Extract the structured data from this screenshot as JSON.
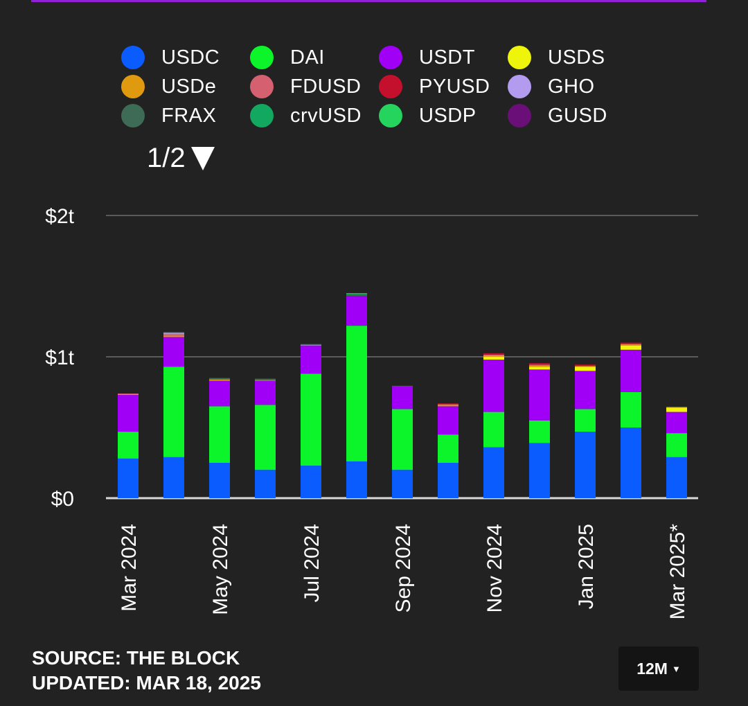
{
  "legend": {
    "items": [
      {
        "label": "USDC",
        "color": "#0a5cff"
      },
      {
        "label": "DAI",
        "color": "#0cf52a"
      },
      {
        "label": "USDT",
        "color": "#a000f5"
      },
      {
        "label": "USDS",
        "color": "#eef50a"
      },
      {
        "label": "USDe",
        "color": "#e09a10"
      },
      {
        "label": "FDUSD",
        "color": "#d56070"
      },
      {
        "label": "PYUSD",
        "color": "#c4102c"
      },
      {
        "label": "GHO",
        "color": "#b39cf0"
      },
      {
        "label": "FRAX",
        "color": "#3e6b56"
      },
      {
        "label": "crvUSD",
        "color": "#12a860"
      },
      {
        "label": "USDP",
        "color": "#25d45c"
      },
      {
        "label": "GUSD",
        "color": "#6a0f78"
      }
    ],
    "page_indicator": "1/2"
  },
  "footer": {
    "source": "SOURCE: THE BLOCK",
    "updated": "UPDATED: MAR 18, 2025"
  },
  "range_button": {
    "label": "12M"
  },
  "chart_data": {
    "type": "bar",
    "stacked": true,
    "ylim": [
      0,
      2
    ],
    "y_unit": "$ trillions",
    "y_ticks": [
      {
        "value": 0,
        "label": "$0"
      },
      {
        "value": 1,
        "label": "$1t"
      },
      {
        "value": 2,
        "label": "$2t"
      }
    ],
    "grid": true,
    "legend_position": "top",
    "categories": [
      "Mar 2024",
      "Apr 2024",
      "May 2024",
      "Jun 2024",
      "Jul 2024",
      "Aug 2024",
      "Sep 2024",
      "Oct 2024",
      "Nov 2024",
      "Dec 2024",
      "Jan 2025",
      "Feb 2025",
      "Mar 2025*"
    ],
    "x_tick_labels": [
      "Mar 2024",
      "",
      "May 2024",
      "",
      "Jul 2024",
      "",
      "Sep 2024",
      "",
      "Nov 2024",
      "",
      "Jan 2025",
      "",
      "Mar 2025*"
    ],
    "series": [
      {
        "name": "USDC",
        "color": "#0a5cff",
        "values": [
          0.28,
          0.29,
          0.25,
          0.2,
          0.23,
          0.26,
          0.2,
          0.25,
          0.36,
          0.39,
          0.47,
          0.5,
          0.29
        ]
      },
      {
        "name": "DAI",
        "color": "#0cf52a",
        "values": [
          0.19,
          0.64,
          0.4,
          0.46,
          0.65,
          0.96,
          0.43,
          0.2,
          0.25,
          0.16,
          0.16,
          0.25,
          0.17
        ]
      },
      {
        "name": "USDT",
        "color": "#a000f5",
        "values": [
          0.26,
          0.21,
          0.18,
          0.17,
          0.2,
          0.21,
          0.16,
          0.2,
          0.37,
          0.36,
          0.27,
          0.3,
          0.15
        ]
      },
      {
        "name": "USDS",
        "color": "#eef50a",
        "values": [
          0,
          0,
          0,
          0,
          0,
          0,
          0,
          0,
          0.02,
          0.02,
          0.03,
          0.03,
          0.03
        ]
      },
      {
        "name": "USDe",
        "color": "#e09a10",
        "values": [
          0.005,
          0.01,
          0.01,
          0.005,
          0,
          0,
          0,
          0.01,
          0.01,
          0.01,
          0.005,
          0.01,
          0.005
        ]
      },
      {
        "name": "FDUSD",
        "color": "#d56070",
        "values": [
          0.005,
          0.01,
          0,
          0,
          0,
          0,
          0,
          0.005,
          0.005,
          0.005,
          0,
          0,
          0
        ]
      },
      {
        "name": "PYUSD",
        "color": "#c4102c",
        "values": [
          0,
          0,
          0,
          0,
          0,
          0,
          0,
          0.005,
          0.01,
          0.01,
          0.01,
          0.01,
          0
        ]
      },
      {
        "name": "GHO",
        "color": "#b39cf0",
        "values": [
          0,
          0.01,
          0,
          0,
          0.005,
          0,
          0,
          0,
          0,
          0,
          0,
          0,
          0
        ]
      },
      {
        "name": "FRAX",
        "color": "#3e6b56",
        "values": [
          0,
          0.005,
          0.01,
          0.01,
          0.005,
          0.01,
          0.005,
          0,
          0,
          0,
          0,
          0,
          0
        ]
      },
      {
        "name": "crvUSD",
        "color": "#12a860",
        "values": [
          0,
          0,
          0,
          0,
          0,
          0.005,
          0,
          0,
          0,
          0,
          0,
          0,
          0
        ]
      },
      {
        "name": "USDP",
        "color": "#25d45c",
        "values": [
          0,
          0,
          0,
          0,
          0,
          0.005,
          0,
          0,
          0,
          0,
          0,
          0,
          0
        ]
      },
      {
        "name": "GUSD",
        "color": "#6a0f78",
        "values": [
          0,
          0,
          0,
          0,
          0,
          0,
          0,
          0,
          0,
          0,
          0,
          0,
          0
        ]
      }
    ]
  }
}
